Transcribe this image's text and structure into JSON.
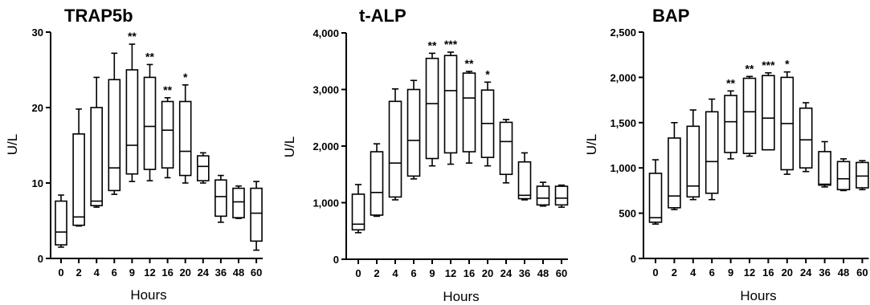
{
  "chart_data": [
    {
      "type": "box",
      "title": "TRAP5b",
      "xlabel": "Hours",
      "ylabel": "U/L",
      "ylim": [
        0,
        30
      ],
      "yticks": [
        "0",
        "10",
        "20",
        "30"
      ],
      "ytick_values": [
        0,
        10,
        20,
        30
      ],
      "categories": [
        "0",
        "2",
        "4",
        "6",
        "9",
        "12",
        "16",
        "20",
        "24",
        "36",
        "48",
        "60"
      ],
      "boxes": [
        {
          "min": 1.5,
          "q1": 1.8,
          "median": 3.5,
          "q3": 7.6,
          "max": 8.4
        },
        {
          "min": 4.3,
          "q1": 4.4,
          "median": 5.5,
          "q3": 16.5,
          "max": 19.8
        },
        {
          "min": 6.8,
          "q1": 7.0,
          "median": 7.6,
          "q3": 20.0,
          "max": 24.0
        },
        {
          "min": 8.5,
          "q1": 9.0,
          "median": 12.0,
          "q3": 23.7,
          "max": 27.2
        },
        {
          "min": 10.2,
          "q1": 11.2,
          "median": 15.0,
          "q3": 25.0,
          "max": 28.4
        },
        {
          "min": 10.3,
          "q1": 11.8,
          "median": 17.5,
          "q3": 24.0,
          "max": 25.7
        },
        {
          "min": 10.7,
          "q1": 12.0,
          "median": 17.0,
          "q3": 20.8,
          "max": 21.3
        },
        {
          "min": 10.0,
          "q1": 11.0,
          "median": 14.2,
          "q3": 20.8,
          "max": 23.0
        },
        {
          "min": 10.0,
          "q1": 10.3,
          "median": 12.2,
          "q3": 13.6,
          "max": 14.0
        },
        {
          "min": 4.8,
          "q1": 5.6,
          "median": 8.2,
          "q3": 10.4,
          "max": 11.0
        },
        {
          "min": 5.3,
          "q1": 5.4,
          "median": 7.5,
          "q3": 9.3,
          "max": 9.6
        },
        {
          "min": 1.1,
          "q1": 2.3,
          "median": 6.0,
          "q3": 9.3,
          "max": 10.2
        }
      ],
      "significance": [
        "",
        "",
        "",
        "",
        "**",
        "**",
        "**",
        "*",
        "",
        "",
        "",
        ""
      ]
    },
    {
      "type": "box",
      "title": "t-ALP",
      "xlabel": "Hours",
      "ylabel": "U/L",
      "ylim": [
        0,
        4000
      ],
      "yticks": [
        "0",
        "1,000",
        "2,000",
        "3,000",
        "4,000"
      ],
      "ytick_values": [
        0,
        1000,
        2000,
        3000,
        4000
      ],
      "categories": [
        "0",
        "2",
        "4",
        "6",
        "9",
        "12",
        "16",
        "20",
        "24",
        "36",
        "48",
        "60"
      ],
      "boxes": [
        {
          "min": 470,
          "q1": 520,
          "median": 620,
          "q3": 1150,
          "max": 1320
        },
        {
          "min": 760,
          "q1": 780,
          "median": 1180,
          "q3": 1900,
          "max": 2040
        },
        {
          "min": 1050,
          "q1": 1100,
          "median": 1700,
          "q3": 2790,
          "max": 3010
        },
        {
          "min": 1420,
          "q1": 1470,
          "median": 2100,
          "q3": 3000,
          "max": 3160
        },
        {
          "min": 1650,
          "q1": 1780,
          "median": 2750,
          "q3": 3550,
          "max": 3640
        },
        {
          "min": 1680,
          "q1": 1880,
          "median": 2980,
          "q3": 3600,
          "max": 3660
        },
        {
          "min": 1700,
          "q1": 1900,
          "median": 2850,
          "q3": 3290,
          "max": 3320
        },
        {
          "min": 1650,
          "q1": 1800,
          "median": 2400,
          "q3": 2990,
          "max": 3130
        },
        {
          "min": 1350,
          "q1": 1500,
          "median": 2080,
          "q3": 2420,
          "max": 2470
        },
        {
          "min": 1050,
          "q1": 1070,
          "median": 1130,
          "q3": 1720,
          "max": 1880
        },
        {
          "min": 940,
          "q1": 960,
          "median": 1080,
          "q3": 1290,
          "max": 1360
        },
        {
          "min": 920,
          "q1": 960,
          "median": 1080,
          "q3": 1290,
          "max": 1310
        }
      ],
      "significance": [
        "",
        "",
        "",
        "",
        "**",
        "***",
        "**",
        "*",
        "",
        "",
        "",
        ""
      ]
    },
    {
      "type": "box",
      "title": "BAP",
      "xlabel": "Hours",
      "ylabel": "U/L",
      "ylim": [
        0,
        2500
      ],
      "yticks": [
        "0",
        "500",
        "1,000",
        "1,500",
        "2,000",
        "2,500"
      ],
      "ytick_values": [
        0,
        500,
        1000,
        1500,
        2000,
        2500
      ],
      "categories": [
        "0",
        "2",
        "4",
        "6",
        "9",
        "12",
        "16",
        "20",
        "24",
        "36",
        "48",
        "60"
      ],
      "boxes": [
        {
          "min": 380,
          "q1": 400,
          "median": 450,
          "q3": 940,
          "max": 1090
        },
        {
          "min": 540,
          "q1": 560,
          "median": 690,
          "q3": 1330,
          "max": 1500
        },
        {
          "min": 650,
          "q1": 680,
          "median": 800,
          "q3": 1460,
          "max": 1640
        },
        {
          "min": 650,
          "q1": 720,
          "median": 1070,
          "q3": 1620,
          "max": 1760
        },
        {
          "min": 1100,
          "q1": 1170,
          "median": 1510,
          "q3": 1800,
          "max": 1850
        },
        {
          "min": 1130,
          "q1": 1160,
          "median": 1620,
          "q3": 1990,
          "max": 2010
        },
        {
          "min": 1200,
          "q1": 1200,
          "median": 1550,
          "q3": 2020,
          "max": 2050
        },
        {
          "min": 930,
          "q1": 980,
          "median": 1490,
          "q3": 2000,
          "max": 2060
        },
        {
          "min": 960,
          "q1": 1000,
          "median": 1310,
          "q3": 1660,
          "max": 1720
        },
        {
          "min": 790,
          "q1": 810,
          "median": 820,
          "q3": 1180,
          "max": 1290
        },
        {
          "min": 750,
          "q1": 760,
          "median": 880,
          "q3": 1070,
          "max": 1100
        },
        {
          "min": 760,
          "q1": 780,
          "median": 910,
          "q3": 1060,
          "max": 1080
        }
      ],
      "significance": [
        "",
        "",
        "",
        "",
        "**",
        "**",
        "***",
        "*",
        "",
        "",
        "",
        ""
      ]
    }
  ]
}
